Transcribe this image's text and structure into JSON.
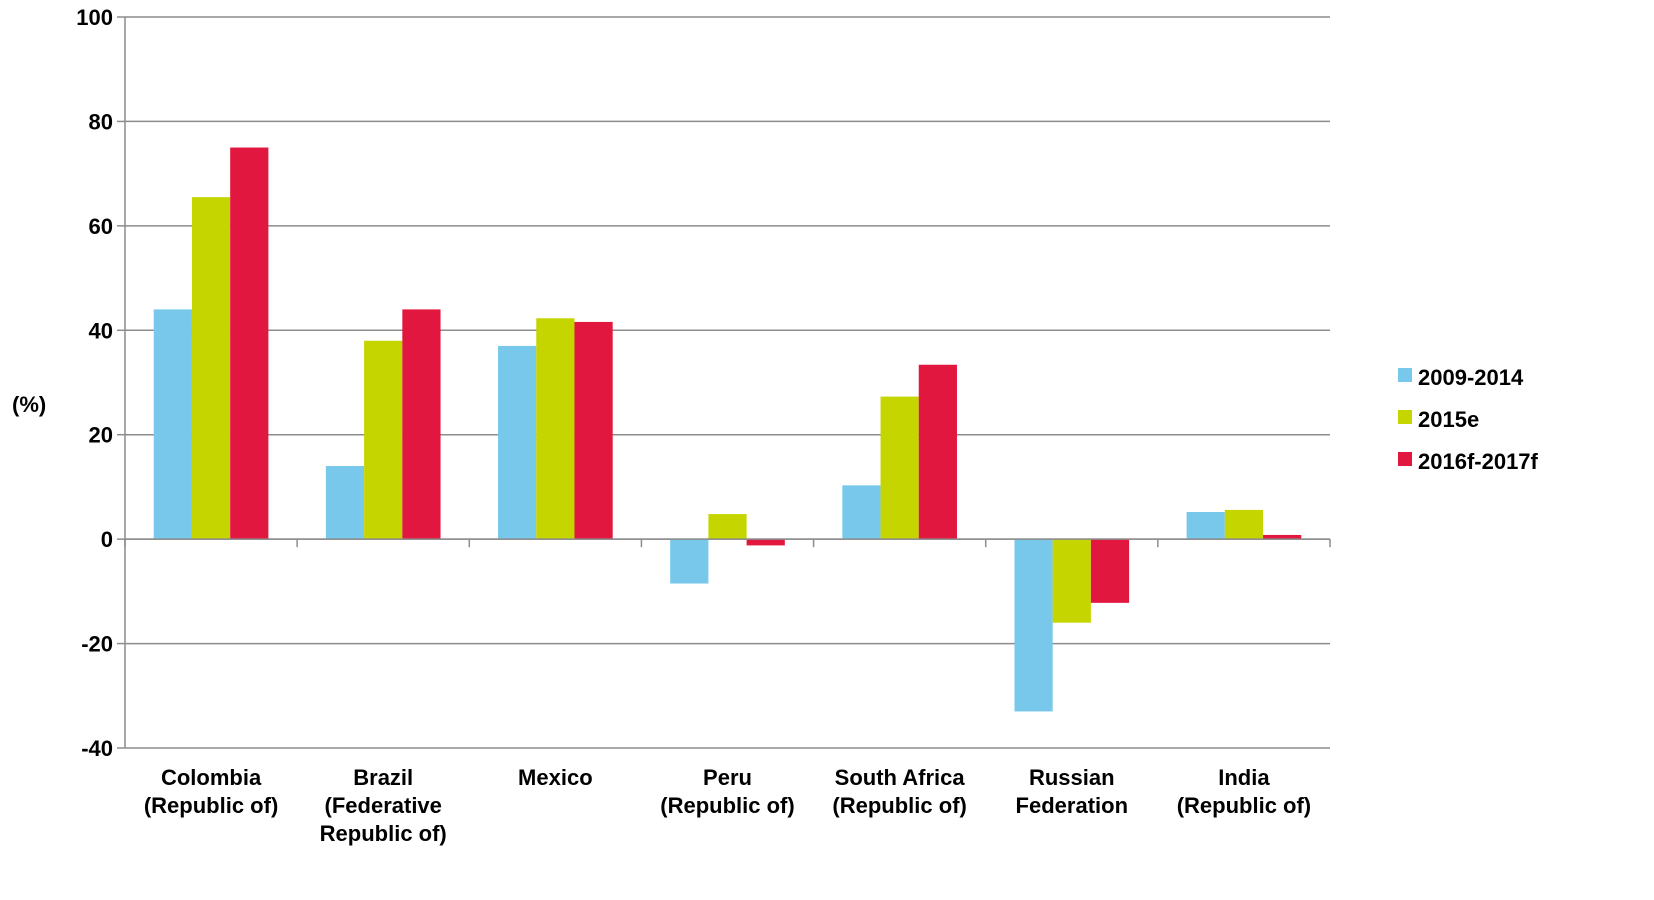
{
  "chart_data": {
    "type": "bar",
    "title": "",
    "xlabel": "",
    "ylabel": "(%)",
    "ylim": [
      -40,
      100
    ],
    "yticks": [
      -40,
      -20,
      0,
      20,
      40,
      60,
      80,
      100
    ],
    "grid": true,
    "legend_position": "right",
    "categories": [
      [
        "Colombia",
        "(Republic of)"
      ],
      [
        "Brazil",
        "(Federative",
        "Republic of)"
      ],
      [
        "Mexico"
      ],
      [
        "Peru",
        "(Republic of)"
      ],
      [
        "South Africa",
        "(Republic of)"
      ],
      [
        "Russian",
        "Federation"
      ],
      [
        "India",
        "(Republic of)"
      ]
    ],
    "series": [
      {
        "name": "2009-2014",
        "color": "#77c8ea",
        "values": [
          44,
          14,
          37,
          -8.5,
          10.3,
          -33,
          5.2
        ]
      },
      {
        "name": "2015e",
        "color": "#c5d500",
        "values": [
          65.5,
          38,
          42.3,
          4.8,
          27.3,
          -16,
          5.6
        ]
      },
      {
        "name": "2016f-2017f",
        "color": "#e2173f",
        "values": [
          75,
          44,
          41.6,
          -1.2,
          33.4,
          -12.2,
          0.8
        ]
      }
    ]
  }
}
